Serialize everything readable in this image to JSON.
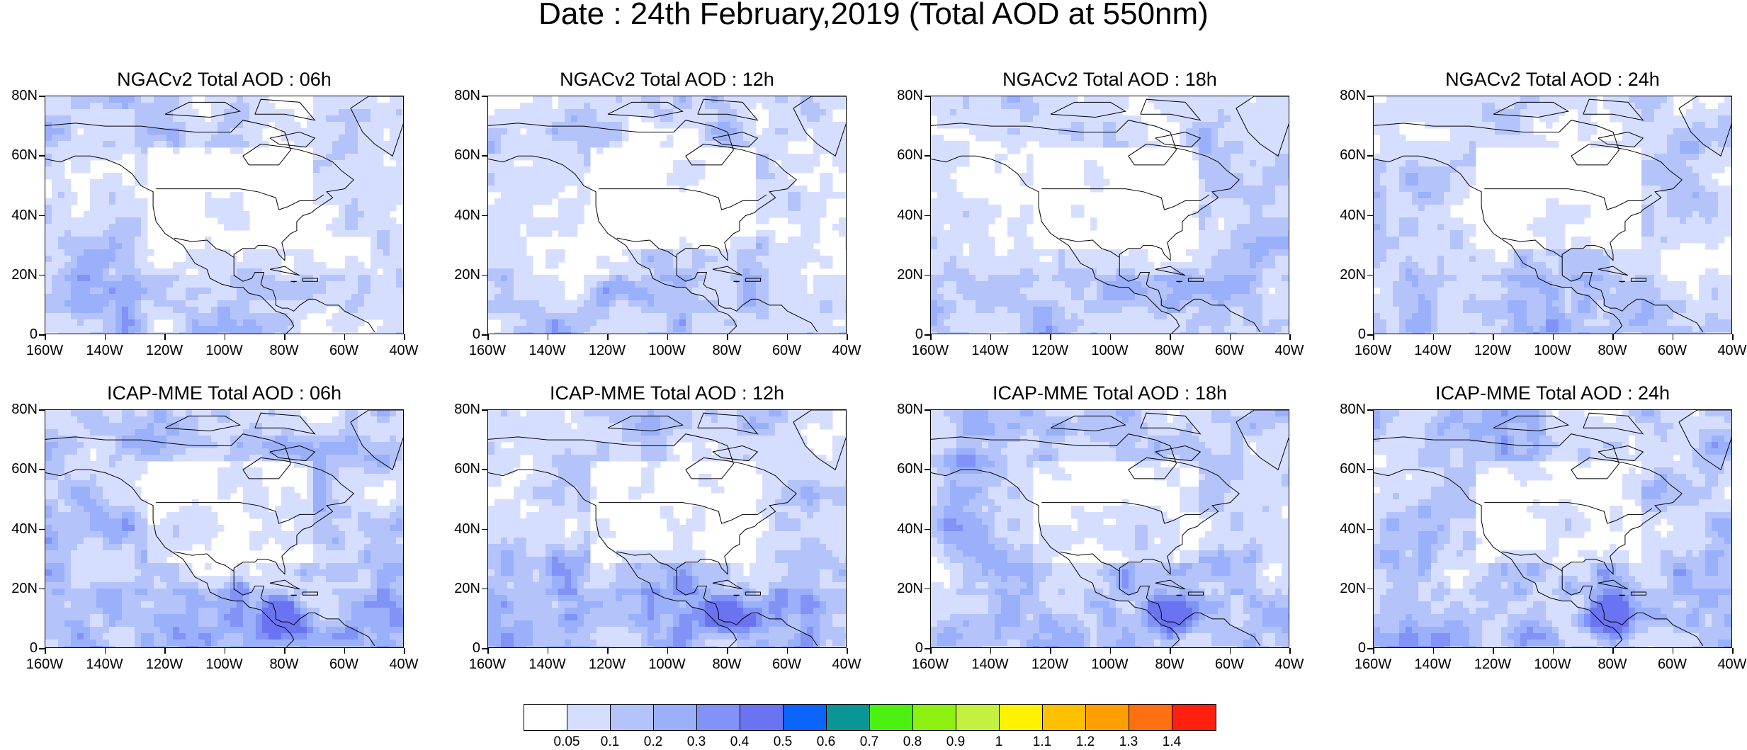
{
  "figure_title": "Date : 24th February,2019 (Total AOD at 550nm)",
  "panels": [
    {
      "title": "NGACv2 Total AOD : 06h"
    },
    {
      "title": "NGACv2 Total AOD : 12h"
    },
    {
      "title": "NGACv2 Total AOD : 18h"
    },
    {
      "title": "NGACv2 Total AOD : 24h"
    },
    {
      "title": "ICAP-MME Total AOD : 06h"
    },
    {
      "title": "ICAP-MME Total AOD : 12h"
    },
    {
      "title": "ICAP-MME Total AOD : 18h"
    },
    {
      "title": "ICAP-MME Total AOD : 24h"
    }
  ],
  "lat_labels": [
    "80N",
    "60N",
    "40N",
    "20N",
    "0"
  ],
  "lon_labels": [
    "160W",
    "140W",
    "120W",
    "100W",
    "80W",
    "60W",
    "40W"
  ],
  "colorbar": {
    "colors": [
      "#ffffff",
      "#d6deff",
      "#b4c4fb",
      "#9bb0fa",
      "#8193f7",
      "#6a74f2",
      "#0a64fa",
      "#0a9696",
      "#4bf010",
      "#8cf010",
      "#c4f040",
      "#fff200",
      "#ffc000",
      "#ffa000",
      "#ff7010",
      "#ff2010"
    ],
    "labels": [
      "0.05",
      "0.1",
      "0.2",
      "0.3",
      "0.4",
      "0.5",
      "0.6",
      "0.7",
      "0.8",
      "0.9",
      "1",
      "1.1",
      "1.2",
      "1.3",
      "1.4"
    ]
  }
}
